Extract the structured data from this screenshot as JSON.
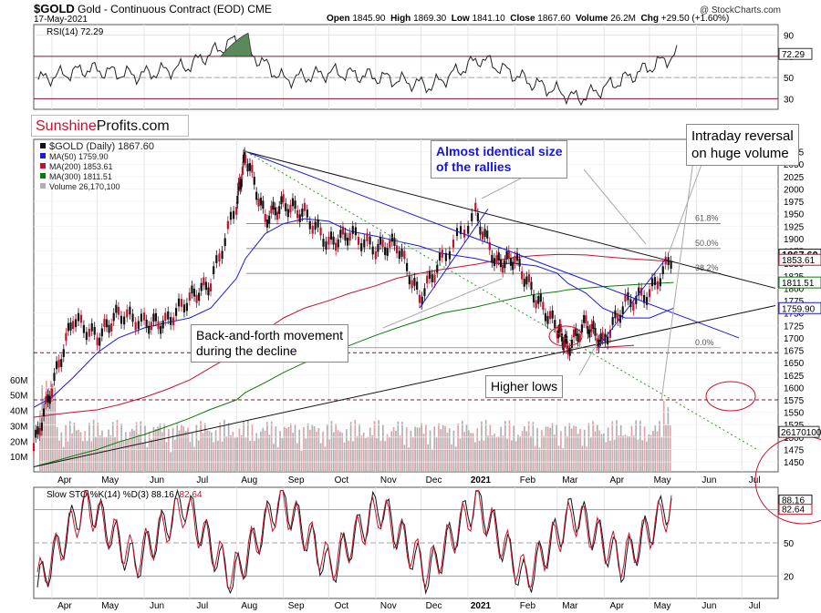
{
  "header": {
    "symbol": "$GOLD",
    "description": "Gold - Continuous Contract (EOD) CME",
    "date": "17-May-2021",
    "open_label": "Open",
    "open": "1845.90",
    "high_label": "High",
    "high": "1869.30",
    "low_label": "Low",
    "low": "1841.10",
    "close_label": "Close",
    "close": "1867.60",
    "volume_label": "Volume",
    "volume": "26.2M",
    "chg_label": "Chg",
    "chg": "+29.50 (+1.60%)",
    "credit": "@ StockCharts.com"
  },
  "logo": {
    "part1": "Sunshine",
    "part2": "Profits.com"
  },
  "annotations": {
    "rallies_line1": "Almost identical size",
    "rallies_line2": "of the rallies",
    "reversal_line1": "Intraday reversal",
    "reversal_line2": "on huge volume",
    "backforth_line1": "Back-and-forth movement",
    "backforth_line2": "during the decline",
    "higher_lows": "Higher lows"
  },
  "colors": {
    "price_up": "#111111",
    "price_down": "#c8102e",
    "ma50": "#1a1ad8",
    "ma200": "#c8102e",
    "ma300": "#0a7a0a",
    "trend_blue": "#1a1ad8",
    "trend_black": "#111111",
    "dotted_green": "#2e9a2e",
    "volume_gray": "#b0b0b0",
    "volume_pink": "#eaa0a8",
    "rsi_fill": "#5a8a5a",
    "annotation_red": "#c8102e"
  },
  "chart_data": [
    {
      "type": "line",
      "title": "RSI(14) 72.29",
      "indicator": "RSI(14)",
      "last_value": 72.29,
      "ylim": [
        20,
        100
      ],
      "y_ticks": [
        30,
        50,
        70,
        90
      ],
      "y_tick_labels": [
        "30",
        "50",
        "70",
        "90"
      ],
      "last_value_label": "72.29",
      "reference_lines": [
        70,
        30
      ],
      "x": [
        "Apr-2020",
        "May",
        "Jun",
        "Jul",
        "Aug",
        "Sep",
        "Oct",
        "Nov",
        "Dec",
        "Jan-2021",
        "Feb",
        "Mar",
        "Apr",
        "May"
      ],
      "series": [
        {
          "values": [
            48,
            58,
            52,
            60,
            85,
            48,
            55,
            50,
            42,
            68,
            46,
            30,
            50,
            72
          ]
        }
      ]
    },
    {
      "type": "line",
      "subtype": "candlestick",
      "title": "$GOLD (Daily) 1867.60",
      "legend": [
        {
          "name": "$GOLD (Daily) 1867.60",
          "color": "#111111"
        },
        {
          "name": "MA(50) 1759.90",
          "color": "#1a1ad8"
        },
        {
          "name": "MA(200) 1853.61",
          "color": "#c8102e"
        },
        {
          "name": "MA(300) 1811.51",
          "color": "#0a7a0a"
        },
        {
          "name": "Volume 26,170,100",
          "color": "#b0b0b0"
        }
      ],
      "legend_placement": "top-left",
      "ylim": [
        1430,
        2100
      ],
      "y_ticks": [
        1450,
        1475,
        1500,
        1525,
        1550,
        1575,
        1600,
        1625,
        1650,
        1675,
        1700,
        1725,
        1750,
        1775,
        1800,
        1825,
        1850,
        1875,
        1900,
        1925,
        1950,
        1975,
        2000,
        2025,
        2050,
        2075
      ],
      "y_tick_labels": [
        "1450",
        "1475",
        "1500",
        "1525",
        "1550",
        "1575",
        "1600",
        "1625",
        "1650",
        "1675",
        "1700",
        "1725",
        "1750",
        "1775",
        "1800",
        "1825",
        "1850",
        "1875",
        "1900",
        "1925",
        "1950",
        "1975",
        "2000",
        "2025",
        "2050",
        "2075"
      ],
      "x_tick_labels": [
        "Apr",
        "May",
        "Jun",
        "Jul",
        "Aug",
        "Sep",
        "Oct",
        "Nov",
        "Dec",
        "2021",
        "Feb",
        "Mar",
        "Apr",
        "May",
        "Jun",
        "Jul"
      ],
      "x": [
        "2020-03-20",
        "2020-04-01",
        "2020-04-15",
        "2020-05-01",
        "2020-05-15",
        "2020-06-01",
        "2020-06-15",
        "2020-07-01",
        "2020-07-15",
        "2020-08-01",
        "2020-08-07",
        "2020-08-20",
        "2020-09-01",
        "2020-09-15",
        "2020-10-01",
        "2020-10-15",
        "2020-11-01",
        "2020-11-15",
        "2020-11-30",
        "2020-12-15",
        "2021-01-06",
        "2021-01-20",
        "2021-02-01",
        "2021-02-15",
        "2021-03-01",
        "2021-03-08",
        "2021-03-20",
        "2021-03-31",
        "2021-04-15",
        "2021-05-01",
        "2021-05-17"
      ],
      "series": [
        {
          "name": "$GOLD (Daily) 1867.60",
          "values": [
            1480,
            1600,
            1740,
            1700,
            1750,
            1730,
            1730,
            1780,
            1810,
            1970,
            2070,
            1940,
            1970,
            1950,
            1890,
            1910,
            1880,
            1890,
            1780,
            1860,
            1950,
            1850,
            1860,
            1780,
            1720,
            1680,
            1730,
            1690,
            1770,
            1790,
            1867.6
          ]
        },
        {
          "name": "MA(50) 1759.90",
          "values": [
            1560,
            1580,
            1620,
            1670,
            1700,
            1720,
            1730,
            1740,
            1760,
            1820,
            1860,
            1910,
            1930,
            1940,
            1935,
            1915,
            1905,
            1895,
            1885,
            1870,
            1860,
            1850,
            1850,
            1845,
            1830,
            1810,
            1790,
            1760,
            1740,
            1740,
            1759.9
          ]
        },
        {
          "name": "MA(200) 1853.61",
          "values": [
            1540,
            1545,
            1550,
            1555,
            1565,
            1580,
            1595,
            1615,
            1640,
            1670,
            1690,
            1715,
            1740,
            1760,
            1775,
            1790,
            1805,
            1820,
            1830,
            1838,
            1848,
            1856,
            1862,
            1866,
            1868,
            1868,
            1867,
            1864,
            1860,
            1857,
            1853.61
          ]
        },
        {
          "name": "MA(300) 1811.51",
          "values": [
            1440,
            1450,
            1462,
            1475,
            1490,
            1505,
            1520,
            1538,
            1556,
            1575,
            1590,
            1610,
            1630,
            1650,
            1668,
            1685,
            1705,
            1720,
            1735,
            1750,
            1762,
            1772,
            1780,
            1788,
            1793,
            1797,
            1800,
            1803,
            1806,
            1809,
            1811.51
          ]
        }
      ],
      "last_value_labels": [
        "1867.60",
        "1853.61",
        "1811.51",
        "1759.90"
      ],
      "fibonacci": [
        {
          "label": "61.8%",
          "value": 1930
        },
        {
          "label": "50.0%",
          "value": 1880
        },
        {
          "label": "38.2%",
          "value": 1830
        },
        {
          "label": "0.0%",
          "value": 1680
        }
      ],
      "volume": {
        "last_value_label": "26170100",
        "y_tick_labels": [
          "10M",
          "20M",
          "30M",
          "40M",
          "50M",
          "60M"
        ],
        "y_ticks": [
          10,
          20,
          30,
          40,
          50,
          60
        ]
      }
    },
    {
      "type": "line",
      "title": "Slow STO %K(14) %D(3) 88.16, 82.64",
      "title_main": "Slow STO %K(14) %D(3) 88.16,",
      "title_d": "82.64",
      "ylim": [
        0,
        100
      ],
      "y_ticks": [
        20,
        50,
        80
      ],
      "y_tick_labels": [
        "20",
        "50",
        "80"
      ],
      "last_value_labels": [
        "88.16",
        "82.64"
      ],
      "x_tick_labels": [
        "Apr",
        "May",
        "Jun",
        "Jul",
        "Aug",
        "Sep",
        "Oct",
        "Nov",
        "Dec",
        "2021",
        "Feb",
        "Mar",
        "Apr",
        "May",
        "Jun",
        "Jul"
      ],
      "series": [
        {
          "name": "%K",
          "values": [
            10,
            90,
            30,
            88,
            15,
            92,
            25,
            85,
            20,
            90,
            15,
            80,
            30,
            88.16
          ]
        },
        {
          "name": "%D",
          "values": [
            15,
            85,
            35,
            82,
            20,
            88,
            30,
            80,
            25,
            85,
            20,
            75,
            35,
            82.64
          ]
        }
      ]
    }
  ]
}
